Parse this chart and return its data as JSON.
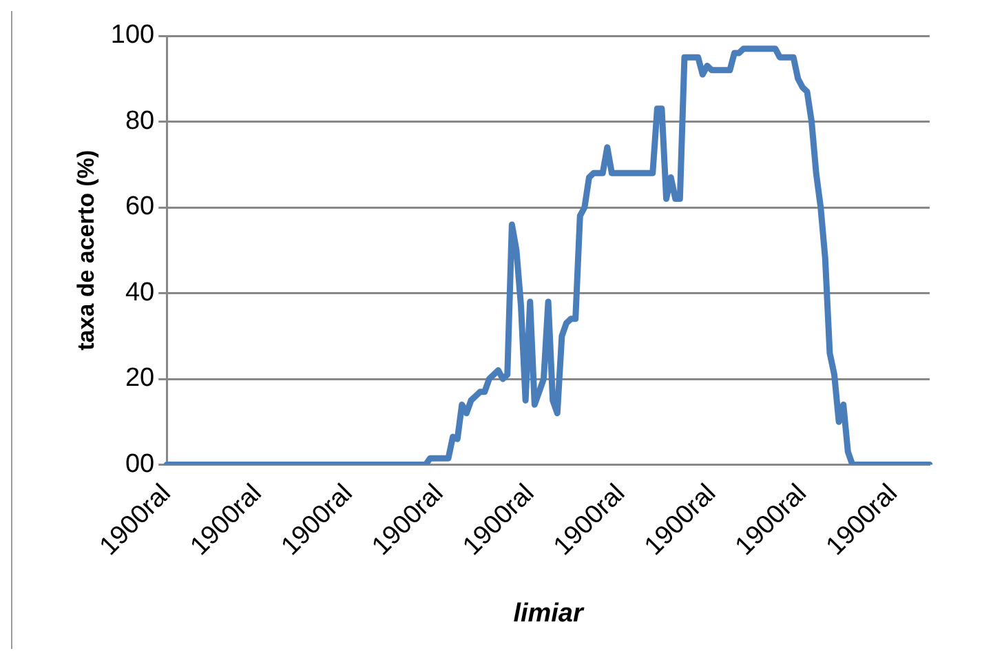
{
  "chart_data": {
    "type": "line",
    "xlabel": "limiar",
    "ylabel": "taxa de acerto (%)",
    "categories": [
      "1900ral",
      null,
      null,
      null,
      null,
      null,
      null,
      null,
      null,
      null,
      null,
      null,
      null,
      null,
      null,
      null,
      null,
      null,
      null,
      null,
      "1900ral",
      null,
      null,
      null,
      null,
      null,
      null,
      null,
      null,
      null,
      null,
      null,
      null,
      null,
      null,
      null,
      null,
      null,
      null,
      null,
      "1900ral",
      null,
      null,
      null,
      null,
      null,
      null,
      null,
      null,
      null,
      null,
      null,
      null,
      null,
      null,
      null,
      null,
      null,
      null,
      null,
      "1900ral",
      null,
      null,
      null,
      null,
      null,
      null,
      null,
      null,
      null,
      null,
      null,
      null,
      null,
      null,
      null,
      null,
      null,
      null,
      null,
      "1900ral",
      null,
      null,
      null,
      null,
      null,
      null,
      null,
      null,
      null,
      null,
      null,
      null,
      null,
      null,
      null,
      null,
      null,
      null,
      null,
      "1900ral",
      null,
      null,
      null,
      null,
      null,
      null,
      null,
      null,
      null,
      null,
      null,
      null,
      null,
      null,
      null,
      null,
      null,
      null,
      null,
      "1900ral",
      null,
      null,
      null,
      null,
      null,
      null,
      null,
      null,
      null,
      null,
      null,
      null,
      null,
      null,
      null,
      null,
      null,
      null,
      null,
      "1900ral",
      null,
      null,
      null,
      null,
      null,
      null,
      null,
      null,
      null,
      null,
      null,
      null,
      null,
      null,
      null,
      null,
      null,
      null,
      null,
      "1900ral",
      null,
      null,
      null,
      null,
      null,
      null,
      null,
      null
    ],
    "series": [
      {
        "color": "#4a7ebb",
        "values": [
          0,
          0,
          0,
          0,
          0,
          0,
          0,
          0,
          0,
          0,
          0,
          0,
          0,
          0,
          0,
          0,
          0,
          0,
          0,
          0,
          0,
          0,
          0,
          0,
          0,
          0,
          0,
          0,
          0,
          0,
          0,
          0,
          0,
          0,
          0,
          0,
          0,
          0,
          0,
          0,
          0,
          0,
          0,
          0,
          0,
          0,
          0,
          0,
          0,
          0,
          0,
          0,
          0,
          0,
          0,
          0,
          0,
          0,
          1.5,
          1.5,
          1.5,
          1.5,
          1.5,
          6.5,
          6,
          14,
          12,
          15,
          16,
          17,
          17,
          20,
          21,
          22,
          20,
          21,
          56,
          50,
          37,
          15,
          38,
          14,
          17,
          20,
          38,
          15,
          12,
          30,
          33,
          34,
          34,
          58,
          60,
          67,
          68,
          68,
          68,
          74,
          68,
          68,
          68,
          68,
          68,
          68,
          68,
          68,
          68,
          68,
          83,
          83,
          62,
          67,
          62,
          62,
          95,
          95,
          95,
          95,
          91,
          93,
          92,
          92,
          92,
          92,
          92,
          96,
          96,
          97,
          97,
          97,
          97,
          97,
          97,
          97,
          97,
          95,
          95,
          95,
          95,
          90,
          88,
          87,
          80,
          68,
          60,
          48,
          26,
          21,
          10,
          14,
          3,
          0,
          0,
          0,
          0,
          0,
          0,
          0,
          0,
          0,
          0,
          0,
          0,
          0,
          0,
          0,
          0,
          0,
          0
        ]
      }
    ],
    "ylim": [
      0,
      100
    ],
    "yticks": [
      {
        "value": 0,
        "label": "00"
      },
      20,
      40,
      60,
      80,
      100
    ],
    "grid": "y",
    "legend": false,
    "marker": "none",
    "line_style": "solid"
  }
}
